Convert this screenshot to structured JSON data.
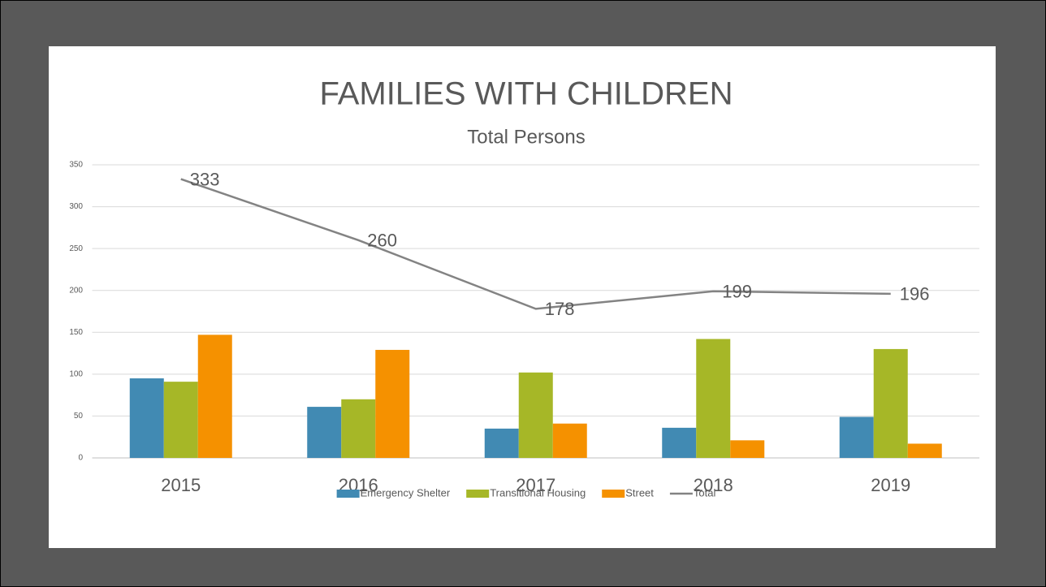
{
  "chart_data": {
    "type": "bar",
    "title": "FAMILIES WITH CHILDREN",
    "subtitle": "Total Persons",
    "categories": [
      "2015",
      "2016",
      "2017",
      "2018",
      "2019"
    ],
    "series": [
      {
        "name": "Emergency Shelter",
        "color": "#418ab3",
        "values": [
          95,
          61,
          35,
          36,
          49
        ]
      },
      {
        "name": "Transitional Housing",
        "color": "#a6b727",
        "values": [
          91,
          70,
          102,
          142,
          130
        ]
      },
      {
        "name": "Street",
        "color": "#f59100",
        "values": [
          147,
          129,
          41,
          21,
          17
        ]
      },
      {
        "name": "Total",
        "color": "#838383",
        "type": "line",
        "values": [
          333,
          260,
          178,
          199,
          196
        ]
      }
    ],
    "ylim": [
      0,
      350
    ],
    "yticks": [
      0,
      50,
      100,
      150,
      200,
      250,
      300,
      350
    ],
    "grid": true,
    "legend": "bottom"
  }
}
